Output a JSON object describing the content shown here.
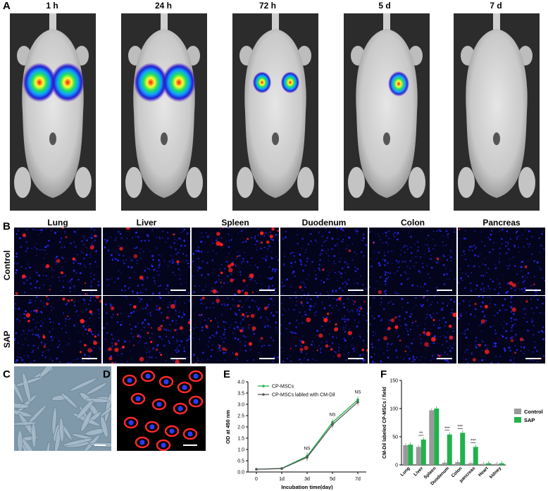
{
  "panels": {
    "a": "A",
    "b": "B",
    "c": "C",
    "d": "D",
    "e": "E",
    "f": "F"
  },
  "timepoints": [
    "1 h",
    "24 h",
    "72 h",
    "5 d",
    "7 d"
  ],
  "tissues": [
    "Lung",
    "Liver",
    "Spleen",
    "Duodenum",
    "Colon",
    "Pancreas"
  ],
  "row_labels": {
    "control": "Control",
    "sap": "SAP"
  },
  "colors": {
    "green": "#22b14c",
    "gray": "#9a9a9a",
    "dark": "#555555",
    "nucleus": "#1a1aff",
    "dil": "#ff2020"
  },
  "chart_data": [
    {
      "type": "line",
      "panel": "E",
      "xlabel": "Incubation time(day)",
      "ylabel": "OD at 450 nm",
      "categories": [
        "0",
        "1d",
        "3d",
        "5d",
        "7d"
      ],
      "ylim": [
        0,
        4.0
      ],
      "yticks": [
        "0.0",
        "0.5",
        "1.0",
        "1.5",
        "2.0",
        "2.5",
        "3.0",
        "3.5",
        "4.0"
      ],
      "series": [
        {
          "name": "CP-MSCs",
          "color": "#22b14c",
          "values": [
            0.12,
            0.16,
            0.7,
            2.2,
            3.2
          ]
        },
        {
          "name": "CP-MSCs labled with CM-Dil",
          "color": "#555555",
          "values": [
            0.12,
            0.15,
            0.65,
            2.1,
            3.1
          ]
        }
      ],
      "annotations": [
        "NS",
        "NS",
        "NS"
      ],
      "grid": false,
      "legend": "top-left"
    },
    {
      "type": "bar",
      "panel": "F",
      "ylabel": "CM-Dil labeled CP-MSCs / field",
      "categories": [
        "Lung",
        "Liver",
        "Spleen",
        "Duodenum",
        "Colon",
        "pancreas",
        "Heart",
        "kidney"
      ],
      "ylim": [
        0,
        150
      ],
      "yticks": [
        "0",
        "50",
        "100",
        "150"
      ],
      "series": [
        {
          "name": "Control",
          "color": "#9a9a9a",
          "values": [
            35,
            32,
            97,
            4,
            5,
            3,
            2,
            2
          ]
        },
        {
          "name": "SAP",
          "color": "#22b14c",
          "values": [
            36,
            45,
            100,
            54,
            57,
            32,
            3,
            3
          ]
        }
      ],
      "significance": [
        "",
        "**",
        "",
        "***",
        "***",
        "***",
        "",
        ""
      ],
      "grid": false,
      "legend": "right"
    }
  ]
}
